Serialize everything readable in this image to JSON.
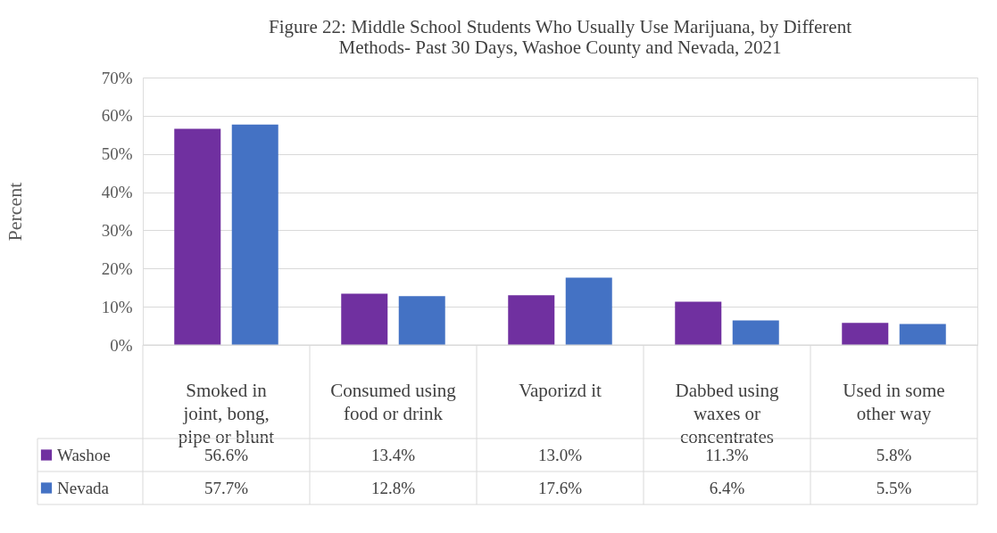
{
  "chart_data": {
    "type": "bar",
    "title": "Figure 22: Middle School Students Who Usually Use Marijuana, by Different Methods- Past 30 Days, Washoe County and Nevada, 2021",
    "ylabel": "Percent",
    "categories": [
      "Smoked in joint, bong, pipe or blunt",
      "Consumed using food or drink",
      "Vaporizd it",
      "Dabbed using waxes or concentrates",
      "Used in some other way"
    ],
    "series": [
      {
        "name": "Washoe",
        "color": "#7030a0",
        "values": [
          56.6,
          13.4,
          13.0,
          11.3,
          5.8
        ],
        "value_labels": [
          "56.6%",
          "13.4%",
          "13.0%",
          "11.3%",
          "5.8%"
        ]
      },
      {
        "name": "Nevada",
        "color": "#4472c4",
        "values": [
          57.7,
          12.8,
          17.6,
          6.4,
          5.5
        ],
        "value_labels": [
          "57.7%",
          "12.8%",
          "17.6%",
          "6.4%",
          "5.5%"
        ]
      }
    ],
    "ylim": [
      0,
      70
    ],
    "yticks": [
      {
        "value": 0,
        "label": "0%"
      },
      {
        "value": 10,
        "label": "10%"
      },
      {
        "value": 20,
        "label": "20%"
      },
      {
        "value": 30,
        "label": "30%"
      },
      {
        "value": 40,
        "label": "40%"
      },
      {
        "value": 50,
        "label": "50%"
      },
      {
        "value": 60,
        "label": "60%"
      },
      {
        "value": 70,
        "label": "70%"
      }
    ],
    "grid": "y",
    "legend": "bottom left"
  }
}
